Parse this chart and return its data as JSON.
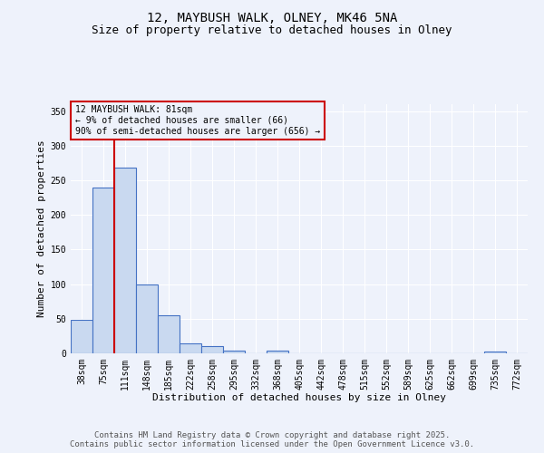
{
  "title": "12, MAYBUSH WALK, OLNEY, MK46 5NA",
  "subtitle": "Size of property relative to detached houses in Olney",
  "xlabel": "Distribution of detached houses by size in Olney",
  "ylabel": "Number of detached properties",
  "categories": [
    "38sqm",
    "75sqm",
    "111sqm",
    "148sqm",
    "185sqm",
    "222sqm",
    "258sqm",
    "295sqm",
    "332sqm",
    "368sqm",
    "405sqm",
    "442sqm",
    "478sqm",
    "515sqm",
    "552sqm",
    "589sqm",
    "625sqm",
    "662sqm",
    "699sqm",
    "735sqm",
    "772sqm"
  ],
  "values": [
    48,
    240,
    268,
    100,
    55,
    14,
    10,
    4,
    0,
    4,
    0,
    0,
    0,
    0,
    0,
    0,
    0,
    0,
    0,
    3,
    0
  ],
  "bar_color": "#c9d9f0",
  "bar_edge_color": "#4472c4",
  "vline_x_idx": 1.5,
  "vline_color": "#cc0000",
  "ylim": [
    0,
    360
  ],
  "yticks": [
    0,
    50,
    100,
    150,
    200,
    250,
    300,
    350
  ],
  "annotation_text": "12 MAYBUSH WALK: 81sqm\n← 9% of detached houses are smaller (66)\n90% of semi-detached houses are larger (656) →",
  "annotation_box_color": "#cc0000",
  "footer_line1": "Contains HM Land Registry data © Crown copyright and database right 2025.",
  "footer_line2": "Contains public sector information licensed under the Open Government Licence v3.0.",
  "background_color": "#eef2fb",
  "grid_color": "#ffffff",
  "title_fontsize": 10,
  "subtitle_fontsize": 9,
  "axis_label_fontsize": 8,
  "tick_fontsize": 7,
  "annotation_fontsize": 7,
  "footer_fontsize": 6.5
}
